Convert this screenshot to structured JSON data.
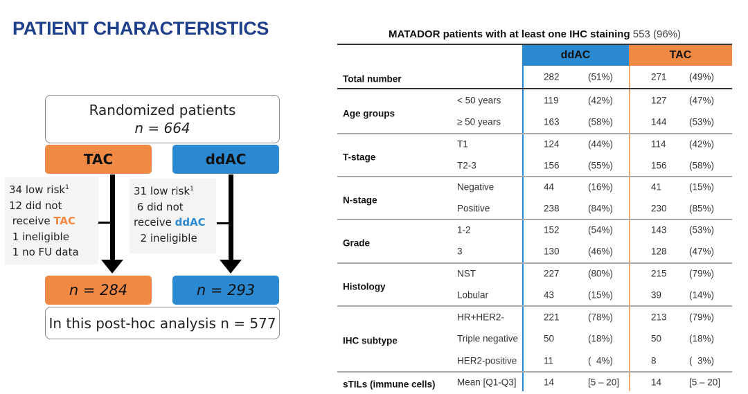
{
  "slide_title": "PATIENT CHARACTERISTICS",
  "colors": {
    "orange": "#f08944",
    "blue": "#2a89d0",
    "title": "#1f3f8a"
  },
  "flowchart": {
    "randomized_label": "Randomized patients",
    "randomized_n": "n = 664",
    "arm_tac": "TAC",
    "arm_ddac": "ddAC",
    "tac_exclusions": {
      "line1": "34 low risk",
      "sup": "1",
      "line2": "12 did not",
      "line3": " receive ",
      "arm": "TAC",
      "line4": " 1 ineligible",
      "line5": " 1 no FU data"
    },
    "ddac_exclusions": {
      "line1": "31 low risk",
      "sup": "1",
      "line2": " 6 did not",
      "line3": "receive ",
      "arm": "ddAC",
      "line4": "  2 ineligible"
    },
    "tac_n": "n = 284",
    "ddac_n": "n = 293",
    "analysis": "In this post-hoc analysis n = 577"
  },
  "table": {
    "title": "MATADOR patients with at least one IHC staining",
    "title_count": "553 (96%)",
    "col_ddac": "ddAC",
    "col_tac": "TAC",
    "total": {
      "label": "Total number",
      "ddac_n": "282",
      "ddac_pct": "(51%)",
      "tac_n": "271",
      "tac_pct": "(49%)"
    },
    "groups": [
      {
        "label": "Age groups",
        "rows": [
          {
            "sub": "< 50 years",
            "ddac_n": "119",
            "ddac_pct": "(42%)",
            "tac_n": "127",
            "tac_pct": "(47%)"
          },
          {
            "sub": "≥ 50 years",
            "ddac_n": "163",
            "ddac_pct": "(58%)",
            "tac_n": "144",
            "tac_pct": "(53%)"
          }
        ]
      },
      {
        "label": "T-stage",
        "rows": [
          {
            "sub": "T1",
            "ddac_n": "124",
            "ddac_pct": "(44%)",
            "tac_n": "114",
            "tac_pct": "(42%)"
          },
          {
            "sub": "T2-3",
            "ddac_n": "156",
            "ddac_pct": "(55%)",
            "tac_n": "156",
            "tac_pct": "(58%)"
          }
        ]
      },
      {
        "label": "N-stage",
        "rows": [
          {
            "sub": "Negative",
            "ddac_n": "44",
            "ddac_pct": "(16%)",
            "tac_n": "41",
            "tac_pct": "(15%)"
          },
          {
            "sub": "Positive",
            "ddac_n": "238",
            "ddac_pct": "(84%)",
            "tac_n": "230",
            "tac_pct": "(85%)"
          }
        ]
      },
      {
        "label": "Grade",
        "rows": [
          {
            "sub": "1-2",
            "ddac_n": "152",
            "ddac_pct": "(54%)",
            "tac_n": "143",
            "tac_pct": "(53%)"
          },
          {
            "sub": "3",
            "ddac_n": "130",
            "ddac_pct": "(46%)",
            "tac_n": "128",
            "tac_pct": "(47%)"
          }
        ]
      },
      {
        "label": "Histology",
        "rows": [
          {
            "sub": "NST",
            "ddac_n": "227",
            "ddac_pct": "(80%)",
            "tac_n": "215",
            "tac_pct": "(79%)"
          },
          {
            "sub": "Lobular",
            "ddac_n": "43",
            "ddac_pct": "(15%)",
            "tac_n": "39",
            "tac_pct": "(14%)"
          }
        ]
      },
      {
        "label": "IHC subtype",
        "rows": [
          {
            "sub": "HR+HER2-",
            "ddac_n": "221",
            "ddac_pct": "(78%)",
            "tac_n": "213",
            "tac_pct": "(79%)"
          },
          {
            "sub": "Triple negative",
            "ddac_n": "50",
            "ddac_pct": "(18%)",
            "tac_n": "50",
            "tac_pct": "(18%)"
          },
          {
            "sub": "HER2-positive",
            "ddac_n": "11",
            "ddac_pct": "(  4%)",
            "tac_n": "8",
            "tac_pct": "(  3%)"
          }
        ]
      },
      {
        "label": "sTILs (immune cells)",
        "rows": [
          {
            "sub": "Mean [Q1-Q3]",
            "ddac_n": "14",
            "ddac_pct": "[5 – 20]",
            "tac_n": "14",
            "tac_pct": "[5 – 20]"
          }
        ]
      }
    ]
  }
}
